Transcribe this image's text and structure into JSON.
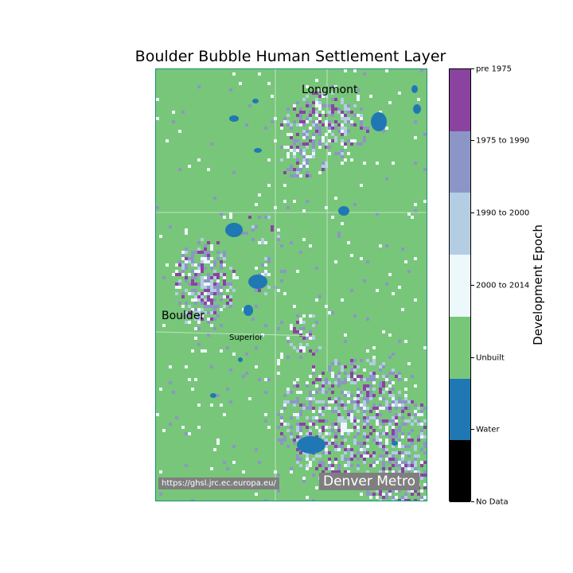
{
  "title": "Boulder Bubble Human Settlement Layer",
  "places": {
    "longmont": "Longmont",
    "boulder": "Boulder",
    "superior": "Superior"
  },
  "source_url": "https://ghsl.jrc.ec.europa.eu/",
  "region_label": "Denver Metro",
  "legend": {
    "title": "Development Epoch",
    "classes": [
      {
        "label": "pre 1975",
        "color": "#8a44a0"
      },
      {
        "label": "1975 to 1990",
        "color": "#8c96c6"
      },
      {
        "label": "1990 to 2000",
        "color": "#b3cde3"
      },
      {
        "label": "2000 to 2014",
        "color": "#edf8fb"
      },
      {
        "label": "Unbuilt",
        "color": "#78c679"
      },
      {
        "label": "Water",
        "color": "#1f78b4"
      },
      {
        "label": "No Data",
        "color": "#000000"
      }
    ]
  },
  "colors": {
    "unbuilt": "#78c679",
    "water": "#1f78b4",
    "pre1975": "#8a44a0",
    "e1975_1990": "#8c96c6",
    "e1990_2000": "#b3cde3",
    "e2000_2014": "#edf8fb",
    "frame": "#1a8f7a"
  }
}
